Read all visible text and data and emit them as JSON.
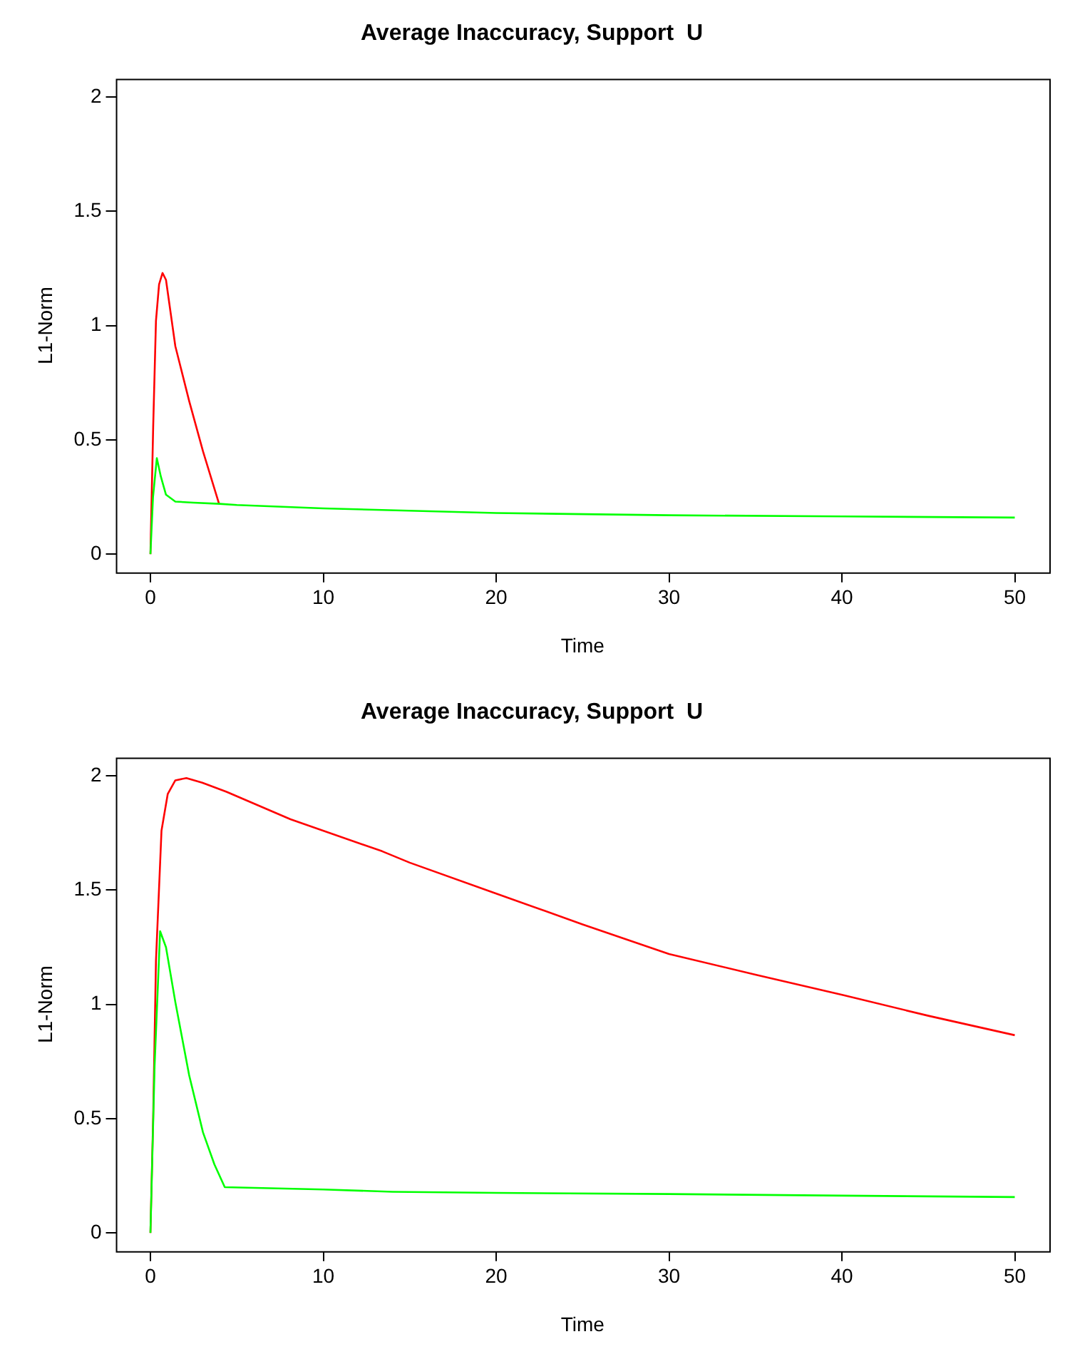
{
  "chart_data": [
    {
      "type": "line",
      "title": "Average Inaccuracy, Support  U",
      "xlabel": "Time",
      "ylabel": "L1-Norm",
      "xlim": [
        -2,
        52
      ],
      "ylim": [
        -0.08,
        2.08
      ],
      "xticks": [
        0,
        10,
        20,
        30,
        40,
        50
      ],
      "yticks": [
        0,
        0.5,
        1,
        1.5,
        2
      ],
      "grid": false,
      "legend": false,
      "marker": "none",
      "line_style": "solid",
      "series": [
        {
          "color": "#ff0000",
          "x": [
            0,
            0.16,
            0.32,
            0.5,
            0.7,
            0.9,
            1.44,
            2.24,
            3.04,
            3.97
          ],
          "values": [
            0,
            0.56,
            1.02,
            1.18,
            1.23,
            1.2,
            0.91,
            0.67,
            0.45,
            0.22
          ]
        },
        {
          "color": "#00ff00",
          "x": [
            0,
            0.15,
            0.37,
            0.6,
            0.9,
            1.44,
            2.5,
            4,
            5,
            10,
            20,
            30,
            40,
            50
          ],
          "values": [
            0,
            0.25,
            0.42,
            0.34,
            0.26,
            0.23,
            0.225,
            0.22,
            0.215,
            0.2,
            0.18,
            0.17,
            0.165,
            0.16
          ]
        }
      ]
    },
    {
      "type": "line",
      "title": "Average Inaccuracy, Support  U",
      "xlabel": "Time",
      "ylabel": "L1-Norm",
      "xlim": [
        -2,
        52
      ],
      "ylim": [
        -0.08,
        2.08
      ],
      "xticks": [
        0,
        10,
        20,
        30,
        40,
        50
      ],
      "yticks": [
        0,
        0.5,
        1,
        1.5,
        2
      ],
      "grid": false,
      "legend": false,
      "marker": "none",
      "line_style": "solid",
      "series": [
        {
          "color": "#ff0000",
          "x": [
            0,
            0.16,
            0.32,
            0.64,
            1.0,
            1.44,
            2.08,
            3,
            4.4,
            8.1,
            13.4,
            15,
            19.8,
            25,
            30,
            35,
            40.1,
            45,
            50
          ],
          "values": [
            0,
            0.51,
            1.19,
            1.76,
            1.92,
            1.98,
            1.99,
            1.97,
            1.93,
            1.81,
            1.67,
            1.62,
            1.49,
            1.35,
            1.22,
            1.13,
            1.04,
            0.95,
            0.865
          ]
        },
        {
          "color": "#00ff00",
          "x": [
            0,
            0.24,
            0.56,
            0.9,
            1.44,
            2.24,
            3.04,
            3.7,
            4.3,
            10,
            14,
            20,
            30,
            40,
            50
          ],
          "values": [
            0,
            0.73,
            1.32,
            1.25,
            1.01,
            0.69,
            0.44,
            0.3,
            0.2,
            0.19,
            0.18,
            0.175,
            0.17,
            0.163,
            0.157
          ]
        }
      ]
    }
  ]
}
